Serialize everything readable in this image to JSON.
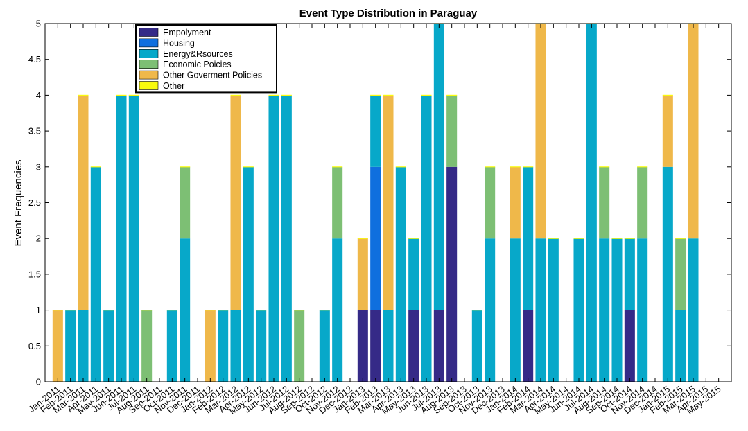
{
  "chart_data": {
    "type": "bar",
    "stacked": true,
    "title": "Event Type Distribution in Paraguay",
    "xlabel": "",
    "ylabel": "Event Frequencies",
    "ylim": [
      0,
      5
    ],
    "yticks": [
      "0",
      "0.5",
      "1",
      "1.5",
      "2",
      "2.5",
      "3",
      "3.5",
      "4",
      "4.5",
      "5"
    ],
    "grid": false,
    "legend_position": "top-left",
    "categories": [
      "Jan-2011",
      "Feb-2011",
      "Mar-2011",
      "Apr-2011",
      "May-2011",
      "Jun-2011",
      "Jul-2011",
      "Aug-2011",
      "Sep-2011",
      "Oct-2011",
      "Nov-2011",
      "Dec-2011",
      "Jan-2012",
      "Feb-2012",
      "Mar-2012",
      "Apr-2012",
      "May-2012",
      "Jun-2012",
      "Jul-2012",
      "Aug-2012",
      "Sep-2012",
      "Oct-2012",
      "Nov-2012",
      "Dec-2012",
      "Jan-2013",
      "Feb-2013",
      "Mar-2013",
      "Apr-2013",
      "May-2013",
      "Jun-2013",
      "Jul-2013",
      "Aug-2013",
      "Sep-2013",
      "Oct-2013",
      "Nov-2013",
      "Dec-2013",
      "Jan-2014",
      "Feb-2014",
      "Mar-2014",
      "Apr-2014",
      "May-2014",
      "Jun-2014",
      "Jul-2014",
      "Aug-2014",
      "Sep-2014",
      "Oct-2014",
      "Nov-2014",
      "Dec-2014",
      "Jan-2015",
      "Feb-2015",
      "Mar-2015",
      "Apr-2015",
      "May-2015"
    ],
    "series": [
      {
        "name": "Empolyment",
        "color": "#352a87",
        "values": [
          0,
          0,
          0,
          0,
          0,
          0,
          0,
          0,
          0,
          0,
          0,
          0,
          0,
          0,
          0,
          0,
          0,
          0,
          0,
          0,
          0,
          0,
          0,
          0,
          1,
          1,
          0,
          0,
          1,
          0,
          1,
          3,
          0,
          0,
          0,
          0,
          0,
          1,
          0,
          0,
          0,
          0,
          0,
          0,
          0,
          1,
          0,
          0,
          0,
          0,
          0,
          0,
          0
        ]
      },
      {
        "name": "Housing",
        "color": "#0f6fde",
        "values": [
          0,
          0,
          0,
          0,
          0,
          0,
          0,
          0,
          0,
          0,
          0,
          0,
          0,
          0,
          0,
          0,
          0,
          0,
          0,
          0,
          0,
          0,
          0,
          0,
          0,
          2,
          0,
          0,
          0,
          0,
          0,
          0,
          0,
          0,
          0,
          0,
          0,
          0,
          0,
          0,
          0,
          0,
          0,
          0,
          0,
          0,
          0,
          0,
          0,
          0,
          0,
          0,
          0
        ]
      },
      {
        "name": "Energy&Rsources",
        "color": "#07a8c9",
        "values": [
          0,
          1,
          1,
          3,
          1,
          4,
          4,
          0,
          0,
          1,
          2,
          0,
          0,
          1,
          1,
          3,
          1,
          4,
          4,
          0,
          0,
          1,
          2,
          0,
          0,
          1,
          1,
          3,
          1,
          4,
          4,
          0,
          0,
          1,
          2,
          0,
          2,
          2,
          2,
          2,
          0,
          2,
          5,
          2,
          2,
          1,
          2,
          0,
          3,
          1,
          2,
          0,
          0
        ]
      },
      {
        "name": "Economic Poicies",
        "color": "#7dbf74",
        "values": [
          0,
          0,
          0,
          0,
          0,
          0,
          0,
          1,
          0,
          0,
          1,
          0,
          0,
          0,
          0,
          0,
          0,
          0,
          0,
          1,
          0,
          0,
          1,
          0,
          0,
          0,
          0,
          0,
          0,
          0,
          0,
          1,
          0,
          0,
          1,
          0,
          0,
          0,
          0,
          0,
          0,
          0,
          0,
          1,
          0,
          0,
          1,
          0,
          0,
          1,
          0,
          0,
          0
        ]
      },
      {
        "name": "Other Goverment Policies",
        "color": "#efb84a",
        "values": [
          1,
          0,
          3,
          0,
          0,
          0,
          0,
          0,
          0,
          0,
          0,
          0,
          1,
          0,
          3,
          0,
          0,
          0,
          0,
          0,
          0,
          0,
          0,
          0,
          1,
          0,
          3,
          0,
          0,
          0,
          0,
          0,
          0,
          0,
          0,
          0,
          1,
          0,
          3,
          0,
          0,
          0,
          0,
          0,
          0,
          0,
          0,
          0,
          1,
          0,
          3,
          0,
          0
        ]
      },
      {
        "name": "Other",
        "color": "#f9fb0e",
        "values": [
          0,
          0,
          0,
          0,
          0,
          0,
          0,
          0,
          0,
          0,
          0,
          0,
          0,
          0,
          0,
          0,
          0,
          0,
          0,
          0,
          0,
          0,
          0,
          0,
          0,
          0,
          0,
          0,
          0,
          0,
          0,
          0,
          0,
          0,
          0,
          0,
          0,
          0,
          0,
          0,
          0,
          0,
          0,
          0,
          0,
          0,
          0,
          0,
          0,
          0,
          0,
          0,
          0
        ]
      }
    ]
  }
}
